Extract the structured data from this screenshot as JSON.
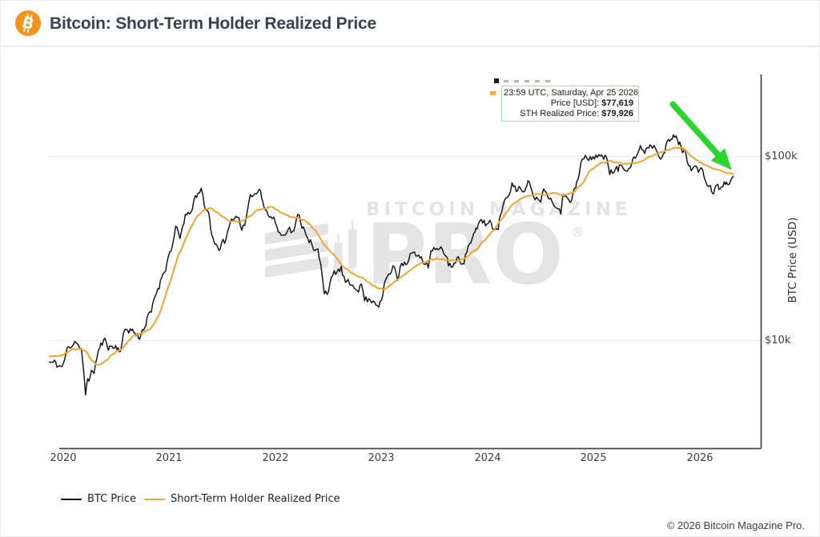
{
  "header": {
    "title": "Bitcoin: Short-Term Holder Realized Price"
  },
  "watermark": {
    "line1": "BITCOIN MAGAZINE",
    "line2": "PRO",
    "registered": "®"
  },
  "tooltip": {
    "timestamp": "23:59 UTC, Saturday, Apr 25 2026",
    "price_label": "Price [USD]:",
    "price_value": "$77,619",
    "sth_label": "STH Realized Price:",
    "sth_value": "$79,926"
  },
  "footer": {
    "copyright": "© 2026 Bitcoin Magazine Pro."
  },
  "chart_data": {
    "type": "line",
    "title": "Bitcoin: Short-Term Holder Realized Price",
    "ylabel": "BTC Price (USD)",
    "y_scale": "log",
    "grid": "horizontal",
    "legend_position": "bottom",
    "x_range": [
      2019.864,
      2026.574
    ],
    "y_range": [
      2590,
      283000
    ],
    "x_ticks": [
      2020,
      2021,
      2022,
      2023,
      2024,
      2025,
      2026
    ],
    "y_ticks": [
      {
        "label": "$100k",
        "value": 100000
      },
      {
        "label": "$10k",
        "value": 10000
      }
    ],
    "annotation_arrow": {
      "x1": 2025.745,
      "y1": 191000,
      "x2": 2026.3,
      "y2": 84000,
      "color": "#2bd52b"
    },
    "series": [
      {
        "name": "BTC Price",
        "color": "#111111",
        "points": [
          [
            2019.87,
            7600
          ],
          [
            2019.94,
            7250
          ],
          [
            2020.0,
            7200
          ],
          [
            2020.05,
            9300
          ],
          [
            2020.12,
            10300
          ],
          [
            2020.17,
            8800
          ],
          [
            2020.21,
            4900
          ],
          [
            2020.23,
            6200
          ],
          [
            2020.29,
            6800
          ],
          [
            2020.33,
            8800
          ],
          [
            2020.38,
            9700
          ],
          [
            2020.46,
            9300
          ],
          [
            2020.54,
            9150
          ],
          [
            2020.58,
            11200
          ],
          [
            2020.63,
            11700
          ],
          [
            2020.71,
            10400
          ],
          [
            2020.79,
            13050
          ],
          [
            2020.83,
            13800
          ],
          [
            2020.88,
            18000
          ],
          [
            2020.94,
            23500
          ],
          [
            2020.99,
            29000
          ],
          [
            2021.03,
            34000
          ],
          [
            2021.06,
            40100
          ],
          [
            2021.1,
            33500
          ],
          [
            2021.15,
            48000
          ],
          [
            2021.19,
            45000
          ],
          [
            2021.23,
            57500
          ],
          [
            2021.27,
            59000
          ],
          [
            2021.3,
            63500
          ],
          [
            2021.33,
            54000
          ],
          [
            2021.37,
            49500
          ],
          [
            2021.4,
            37000
          ],
          [
            2021.44,
            34500
          ],
          [
            2021.48,
            31800
          ],
          [
            2021.52,
            34000
          ],
          [
            2021.56,
            39500
          ],
          [
            2021.6,
            45600
          ],
          [
            2021.64,
            48800
          ],
          [
            2021.67,
            43800
          ],
          [
            2021.71,
            41500
          ],
          [
            2021.75,
            51500
          ],
          [
            2021.79,
            61500
          ],
          [
            2021.82,
            63000
          ],
          [
            2021.86,
            68500
          ],
          [
            2021.89,
            57500
          ],
          [
            2021.93,
            48900
          ],
          [
            2021.97,
            46900
          ],
          [
            2022.0,
            43100
          ],
          [
            2022.04,
            38500
          ],
          [
            2022.08,
            36900
          ],
          [
            2022.12,
            44000
          ],
          [
            2022.16,
            39300
          ],
          [
            2022.21,
            46000
          ],
          [
            2022.25,
            42300
          ],
          [
            2022.29,
            39700
          ],
          [
            2022.33,
            36000
          ],
          [
            2022.36,
            30100
          ],
          [
            2022.4,
            29500
          ],
          [
            2022.44,
            22500
          ],
          [
            2022.46,
            19000
          ],
          [
            2022.5,
            19250
          ],
          [
            2022.54,
            21600
          ],
          [
            2022.58,
            23300
          ],
          [
            2022.62,
            23900
          ],
          [
            2022.66,
            20050
          ],
          [
            2022.7,
            18800
          ],
          [
            2022.73,
            19400
          ],
          [
            2022.77,
            20300
          ],
          [
            2022.81,
            20500
          ],
          [
            2022.84,
            16900
          ],
          [
            2022.88,
            16500
          ],
          [
            2022.92,
            17150
          ],
          [
            2022.96,
            16550
          ],
          [
            2023.0,
            16600
          ],
          [
            2023.04,
            21000
          ],
          [
            2023.08,
            23100
          ],
          [
            2023.12,
            24800
          ],
          [
            2023.15,
            22100
          ],
          [
            2023.19,
            28300
          ],
          [
            2023.23,
            27600
          ],
          [
            2023.27,
            30000
          ],
          [
            2023.31,
            29300
          ],
          [
            2023.35,
            26900
          ],
          [
            2023.4,
            27200
          ],
          [
            2023.44,
            25900
          ],
          [
            2023.48,
            30600
          ],
          [
            2023.52,
            30300
          ],
          [
            2023.56,
            29200
          ],
          [
            2023.6,
            29100
          ],
          [
            2023.63,
            26000
          ],
          [
            2023.67,
            25900
          ],
          [
            2023.71,
            26600
          ],
          [
            2023.75,
            27000
          ],
          [
            2023.79,
            29900
          ],
          [
            2023.83,
            34600
          ],
          [
            2023.87,
            37300
          ],
          [
            2023.9,
            37800
          ],
          [
            2023.94,
            43800
          ],
          [
            2023.98,
            42300
          ],
          [
            2024.02,
            44200
          ],
          [
            2024.06,
            39900
          ],
          [
            2024.1,
            43000
          ],
          [
            2024.13,
            52000
          ],
          [
            2024.17,
            62500
          ],
          [
            2024.2,
            68300
          ],
          [
            2024.23,
            73100
          ],
          [
            2024.27,
            64000
          ],
          [
            2024.31,
            70600
          ],
          [
            2024.35,
            63800
          ],
          [
            2024.38,
            67800
          ],
          [
            2024.42,
            66300
          ],
          [
            2024.46,
            61000
          ],
          [
            2024.5,
            62700
          ],
          [
            2024.54,
            68100
          ],
          [
            2024.58,
            64600
          ],
          [
            2024.61,
            57900
          ],
          [
            2024.65,
            59400
          ],
          [
            2024.69,
            54100
          ],
          [
            2024.71,
            60600
          ],
          [
            2024.75,
            63300
          ],
          [
            2024.79,
            62800
          ],
          [
            2024.83,
            68000
          ],
          [
            2024.85,
            72700
          ],
          [
            2024.88,
            90500
          ],
          [
            2024.92,
            97500
          ],
          [
            2024.94,
            95800
          ],
          [
            2024.98,
            94200
          ],
          [
            2025.02,
            102100
          ],
          [
            2025.06,
            104700
          ],
          [
            2025.08,
            97800
          ],
          [
            2025.12,
            96600
          ],
          [
            2025.15,
            86000
          ],
          [
            2025.19,
            84300
          ],
          [
            2025.23,
            82500
          ],
          [
            2025.25,
            87500
          ],
          [
            2025.29,
            85200
          ],
          [
            2025.33,
            94200
          ],
          [
            2025.37,
            104000
          ],
          [
            2025.4,
            103800
          ],
          [
            2025.44,
            107000
          ],
          [
            2025.48,
            108000
          ],
          [
            2025.52,
            117500
          ],
          [
            2025.54,
            119000
          ],
          [
            2025.58,
            117400
          ],
          [
            2025.6,
            113500
          ],
          [
            2025.63,
            111000
          ],
          [
            2025.67,
            113000
          ],
          [
            2025.69,
            117000
          ],
          [
            2025.73,
            121000
          ],
          [
            2025.75,
            124000
          ],
          [
            2025.79,
            122000
          ],
          [
            2025.81,
            116000
          ],
          [
            2025.85,
            107000
          ],
          [
            2025.88,
            98500
          ],
          [
            2025.92,
            91500
          ],
          [
            2025.96,
            87400
          ],
          [
            2026.0,
            82000
          ],
          [
            2026.04,
            76300
          ],
          [
            2026.08,
            69800
          ],
          [
            2026.1,
            64800
          ],
          [
            2026.13,
            64300
          ],
          [
            2026.17,
            68800
          ],
          [
            2026.19,
            66500
          ],
          [
            2026.23,
            69500
          ],
          [
            2026.25,
            67200
          ],
          [
            2026.29,
            73500
          ],
          [
            2026.315,
            77619
          ]
        ]
      },
      {
        "name": "Short-Term Holder Realized Price",
        "color": "#f7a32f",
        "points": [
          [
            2019.87,
            8100
          ],
          [
            2020.0,
            8300
          ],
          [
            2020.08,
            8800
          ],
          [
            2020.15,
            9000
          ],
          [
            2020.21,
            8700
          ],
          [
            2020.25,
            8000
          ],
          [
            2020.31,
            7400
          ],
          [
            2020.38,
            7600
          ],
          [
            2020.46,
            8400
          ],
          [
            2020.54,
            8900
          ],
          [
            2020.6,
            9600
          ],
          [
            2020.67,
            10500
          ],
          [
            2020.75,
            10900
          ],
          [
            2020.83,
            11600
          ],
          [
            2020.9,
            13600
          ],
          [
            2020.96,
            17200
          ],
          [
            2021.02,
            22000
          ],
          [
            2021.08,
            28500
          ],
          [
            2021.15,
            35500
          ],
          [
            2021.21,
            42000
          ],
          [
            2021.27,
            47500
          ],
          [
            2021.33,
            50500
          ],
          [
            2021.4,
            51000
          ],
          [
            2021.46,
            49000
          ],
          [
            2021.52,
            46500
          ],
          [
            2021.58,
            44800
          ],
          [
            2021.65,
            44300
          ],
          [
            2021.71,
            45200
          ],
          [
            2021.77,
            47500
          ],
          [
            2021.83,
            50500
          ],
          [
            2021.9,
            52500
          ],
          [
            2021.96,
            53200
          ],
          [
            2022.02,
            51000
          ],
          [
            2022.08,
            48500
          ],
          [
            2022.15,
            47000
          ],
          [
            2022.21,
            46500
          ],
          [
            2022.27,
            45000
          ],
          [
            2022.33,
            42000
          ],
          [
            2022.4,
            38000
          ],
          [
            2022.46,
            33500
          ],
          [
            2022.52,
            30000
          ],
          [
            2022.58,
            27500
          ],
          [
            2022.65,
            25200
          ],
          [
            2022.71,
            23600
          ],
          [
            2022.77,
            22400
          ],
          [
            2022.83,
            21300
          ],
          [
            2022.9,
            20200
          ],
          [
            2022.96,
            19300
          ],
          [
            2023.02,
            19000
          ],
          [
            2023.08,
            19800
          ],
          [
            2023.15,
            21200
          ],
          [
            2023.21,
            22800
          ],
          [
            2023.27,
            24300
          ],
          [
            2023.33,
            25700
          ],
          [
            2023.4,
            26800
          ],
          [
            2023.46,
            27500
          ],
          [
            2023.52,
            27900
          ],
          [
            2023.58,
            27800
          ],
          [
            2023.65,
            27400
          ],
          [
            2023.71,
            27200
          ],
          [
            2023.77,
            27800
          ],
          [
            2023.83,
            29300
          ],
          [
            2023.9,
            31500
          ],
          [
            2023.96,
            34200
          ],
          [
            2024.02,
            37500
          ],
          [
            2024.08,
            41500
          ],
          [
            2024.15,
            47000
          ],
          [
            2024.21,
            52500
          ],
          [
            2024.27,
            56500
          ],
          [
            2024.33,
            59500
          ],
          [
            2024.4,
            61000
          ],
          [
            2024.46,
            61800
          ],
          [
            2024.52,
            62300
          ],
          [
            2024.58,
            62500
          ],
          [
            2024.65,
            62000
          ],
          [
            2024.71,
            61700
          ],
          [
            2024.77,
            62500
          ],
          [
            2024.83,
            65500
          ],
          [
            2024.9,
            72500
          ],
          [
            2024.96,
            81500
          ],
          [
            2025.02,
            88000
          ],
          [
            2025.08,
            91500
          ],
          [
            2025.15,
            92800
          ],
          [
            2025.21,
            92000
          ],
          [
            2025.27,
            90500
          ],
          [
            2025.33,
            90800
          ],
          [
            2025.4,
            92500
          ],
          [
            2025.46,
            95500
          ],
          [
            2025.52,
            99500
          ],
          [
            2025.58,
            103000
          ],
          [
            2025.65,
            106000
          ],
          [
            2025.71,
            108500
          ],
          [
            2025.77,
            110500
          ],
          [
            2025.83,
            110000
          ],
          [
            2025.88,
            106500
          ],
          [
            2025.92,
            101500
          ],
          [
            2025.96,
            96500
          ],
          [
            2026.02,
            92000
          ],
          [
            2026.08,
            88500
          ],
          [
            2026.13,
            86000
          ],
          [
            2026.19,
            84000
          ],
          [
            2026.25,
            82000
          ],
          [
            2026.29,
            80800
          ],
          [
            2026.315,
            79926
          ]
        ]
      }
    ]
  }
}
